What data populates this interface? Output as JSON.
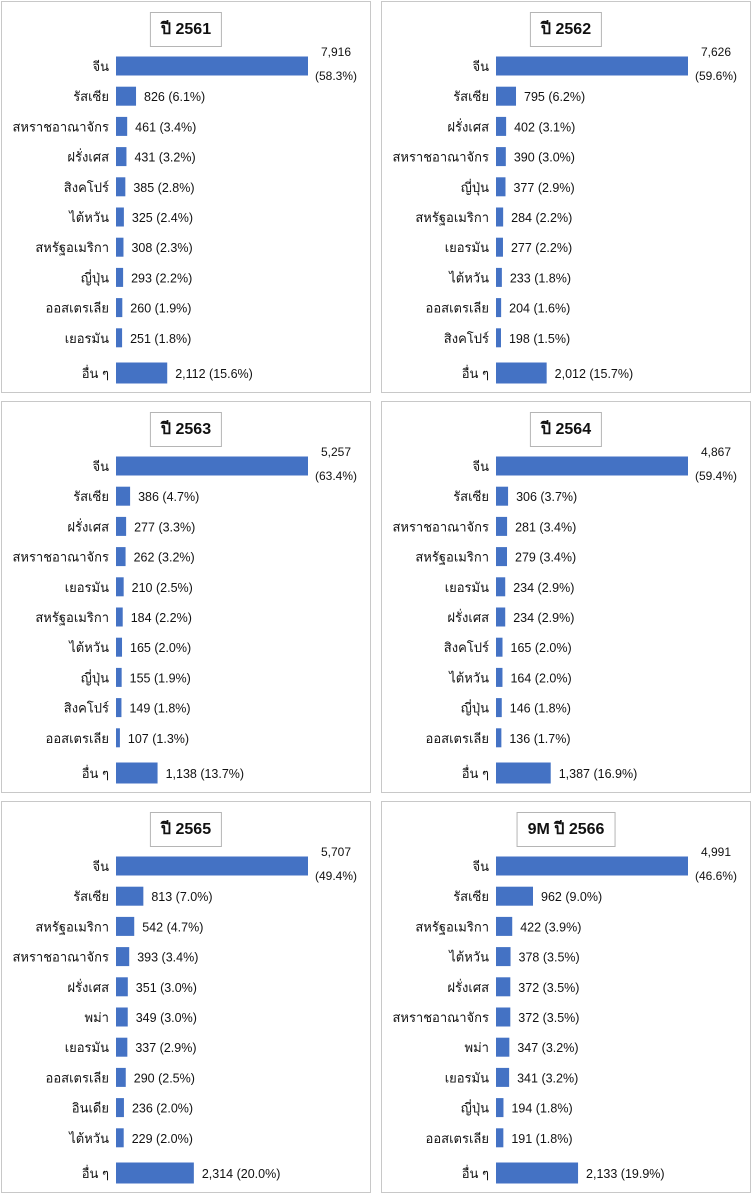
{
  "chart_data": [
    {
      "type": "bar",
      "orientation": "horizontal",
      "title": "ปี 2561",
      "bar_color": "#4472C4",
      "categories": [
        "จีน",
        "รัสเซีย",
        "สหราชอาณาจักร",
        "ฝรั่งเศส",
        "สิงคโปร์",
        "ไต้หวัน",
        "สหรัฐอเมริกา",
        "ญี่ปุ่น",
        "ออสเตรเลีย",
        "เยอรมัน",
        "อื่น ๆ"
      ],
      "values": [
        7916,
        826,
        461,
        431,
        385,
        325,
        308,
        293,
        260,
        251,
        2112
      ],
      "value_labels": [
        "7,916",
        "826",
        "461",
        "431",
        "385",
        "325",
        "308",
        "293",
        "260",
        "251",
        "2,112"
      ],
      "percent_labels": [
        "(58.3%)",
        "(6.1%)",
        "(3.4%)",
        "(3.2%)",
        "(2.8%)",
        "(2.4%)",
        "(2.3%)",
        "(2.2%)",
        "(1.9%)",
        "(1.8%)",
        "(15.6%)"
      ]
    },
    {
      "type": "bar",
      "orientation": "horizontal",
      "title": "ปี 2562",
      "bar_color": "#4472C4",
      "categories": [
        "จีน",
        "รัสเซีย",
        "ฝรั่งเศส",
        "สหราชอาณาจักร",
        "ญี่ปุ่น",
        "สหรัฐอเมริกา",
        "เยอรมัน",
        "ไต้หวัน",
        "ออสเตรเลีย",
        "สิงคโปร์",
        "อื่น ๆ"
      ],
      "values": [
        7626,
        795,
        402,
        390,
        377,
        284,
        277,
        233,
        204,
        198,
        2012
      ],
      "value_labels": [
        "7,626",
        "795",
        "402",
        "390",
        "377",
        "284",
        "277",
        "233",
        "204",
        "198",
        "2,012"
      ],
      "percent_labels": [
        "(59.6%)",
        "(6.2%)",
        "(3.1%)",
        "(3.0%)",
        "(2.9%)",
        "(2.2%)",
        "(2.2%)",
        "(1.8%)",
        "(1.6%)",
        "(1.5%)",
        "(15.7%)"
      ]
    },
    {
      "type": "bar",
      "orientation": "horizontal",
      "title": "ปี 2563",
      "bar_color": "#4472C4",
      "categories": [
        "จีน",
        "รัสเซีย",
        "ฝรั่งเศส",
        "สหราชอาณาจักร",
        "เยอรมัน",
        "สหรัฐอเมริกา",
        "ไต้หวัน",
        "ญี่ปุ่น",
        "สิงคโปร์",
        "ออสเตรเลีย",
        "อื่น ๆ"
      ],
      "values": [
        5257,
        386,
        277,
        262,
        210,
        184,
        165,
        155,
        149,
        107,
        1138
      ],
      "value_labels": [
        "5,257",
        "386",
        "277",
        "262",
        "210",
        "184",
        "165",
        "155",
        "149",
        "107",
        "1,138"
      ],
      "percent_labels": [
        "(63.4%)",
        "(4.7%)",
        "(3.3%)",
        "(3.2%)",
        "(2.5%)",
        "(2.2%)",
        "(2.0%)",
        "(1.9%)",
        "(1.8%)",
        "(1.3%)",
        "(13.7%)"
      ]
    },
    {
      "type": "bar",
      "orientation": "horizontal",
      "title": "ปี 2564",
      "bar_color": "#4472C4",
      "categories": [
        "จีน",
        "รัสเซีย",
        "สหราชอาณาจักร",
        "สหรัฐอเมริกา",
        "เยอรมัน",
        "ฝรั่งเศส",
        "สิงคโปร์",
        "ไต้หวัน",
        "ญี่ปุ่น",
        "ออสเตรเลีย",
        "อื่น ๆ"
      ],
      "values": [
        4867,
        306,
        281,
        279,
        234,
        234,
        165,
        164,
        146,
        136,
        1387
      ],
      "value_labels": [
        "4,867",
        "306",
        "281",
        "279",
        "234",
        "234",
        "165",
        "164",
        "146",
        "136",
        "1,387"
      ],
      "percent_labels": [
        "(59.4%)",
        "(3.7%)",
        "(3.4%)",
        "(3.4%)",
        "(2.9%)",
        "(2.9%)",
        "(2.0%)",
        "(2.0%)",
        "(1.8%)",
        "(1.7%)",
        "(16.9%)"
      ]
    },
    {
      "type": "bar",
      "orientation": "horizontal",
      "title": "ปี 2565",
      "bar_color": "#4472C4",
      "categories": [
        "จีน",
        "รัสเซีย",
        "สหรัฐอเมริกา",
        "สหราชอาณาจักร",
        "ฝรั่งเศส",
        "พม่า",
        "เยอรมัน",
        "ออสเตรเลีย",
        "อินเดีย",
        "ไต้หวัน",
        "อื่น ๆ"
      ],
      "values": [
        5707,
        813,
        542,
        393,
        351,
        349,
        337,
        290,
        236,
        229,
        2314
      ],
      "value_labels": [
        "5,707",
        "813",
        "542",
        "393",
        "351",
        "349",
        "337",
        "290",
        "236",
        "229",
        "2,314"
      ],
      "percent_labels": [
        "(49.4%)",
        "(7.0%)",
        "(4.7%)",
        "(3.4%)",
        "(3.0%)",
        "(3.0%)",
        "(2.9%)",
        "(2.5%)",
        "(2.0%)",
        "(2.0%)",
        "(20.0%)"
      ]
    },
    {
      "type": "bar",
      "orientation": "horizontal",
      "title": "9M ปี 2566",
      "bar_color": "#4472C4",
      "categories": [
        "จีน",
        "รัสเซีย",
        "สหรัฐอเมริกา",
        "ไต้หวัน",
        "ฝรั่งเศส",
        "สหราชอาณาจักร",
        "พม่า",
        "เยอรมัน",
        "ญี่ปุ่น",
        "ออสเตรเลีย",
        "อื่น ๆ"
      ],
      "values": [
        4991,
        962,
        422,
        378,
        372,
        372,
        347,
        341,
        194,
        191,
        2133
      ],
      "value_labels": [
        "4,991",
        "962",
        "422",
        "378",
        "372",
        "372",
        "347",
        "341",
        "194",
        "191",
        "2,133"
      ],
      "percent_labels": [
        "(46.6%)",
        "(9.0%)",
        "(3.9%)",
        "(3.5%)",
        "(3.5%)",
        "(3.5%)",
        "(3.2%)",
        "(3.2%)",
        "(1.8%)",
        "(1.8%)",
        "(19.9%)"
      ]
    }
  ]
}
